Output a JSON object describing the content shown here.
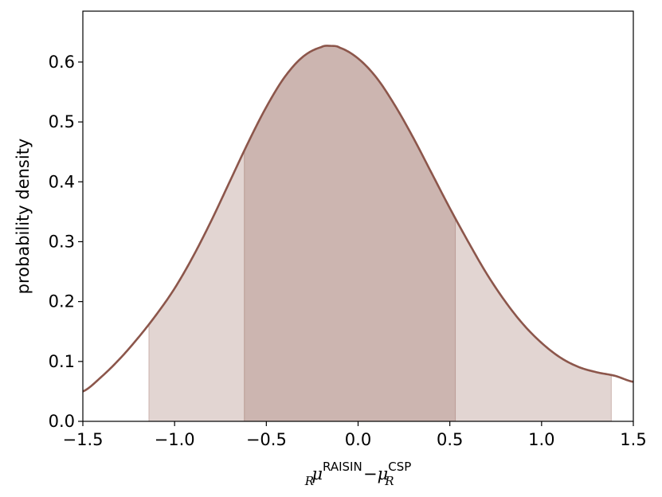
{
  "chart_data": {
    "type": "area",
    "xlabel": {
      "base_left": "μ",
      "sub_left": "R",
      "sup_left": "RAISIN",
      "minus": "−",
      "base_right": "μ",
      "sub_right": "R",
      "sup_right": "CSP"
    },
    "ylabel": "probability density",
    "xlim": [
      -1.5,
      1.5
    ],
    "ylim": [
      0.0,
      0.685
    ],
    "xticks": [
      -1.5,
      -1.0,
      -0.5,
      0.0,
      0.5,
      1.0,
      1.5
    ],
    "xtick_labels": [
      "−1.5",
      "−1.0",
      "−0.5",
      "0.0",
      "0.5",
      "1.0",
      "1.5"
    ],
    "yticks": [
      0.0,
      0.1,
      0.2,
      0.3,
      0.4,
      0.5,
      0.6
    ],
    "ytick_labels": [
      "0.0",
      "0.1",
      "0.2",
      "0.3",
      "0.4",
      "0.5",
      "0.6"
    ],
    "grid": false,
    "series": [
      {
        "x": [
          -1.5,
          -1.4,
          -1.3,
          -1.2,
          -1.1,
          -1.0,
          -0.9,
          -0.8,
          -0.7,
          -0.6,
          -0.5,
          -0.4,
          -0.3,
          -0.2,
          -0.15,
          -0.1,
          0.0,
          0.1,
          0.2,
          0.3,
          0.4,
          0.5,
          0.6,
          0.7,
          0.8,
          0.9,
          1.0,
          1.1,
          1.2,
          1.3,
          1.4,
          1.5
        ],
        "y": [
          0.05,
          0.074,
          0.104,
          0.139,
          0.178,
          0.222,
          0.275,
          0.335,
          0.4,
          0.465,
          0.525,
          0.575,
          0.609,
          0.625,
          0.627,
          0.624,
          0.606,
          0.574,
          0.528,
          0.474,
          0.415,
          0.356,
          0.3,
          0.247,
          0.201,
          0.162,
          0.131,
          0.107,
          0.091,
          0.082,
          0.076,
          0.066
        ],
        "color": "#8c564b"
      }
    ],
    "intervals": [
      {
        "x_min": -1.14,
        "x_max": 1.38,
        "color": "#8c564b",
        "opacity": 0.25
      },
      {
        "x_min": -0.62,
        "x_max": 0.53,
        "color": "#8c564b",
        "opacity": 0.25
      }
    ]
  }
}
